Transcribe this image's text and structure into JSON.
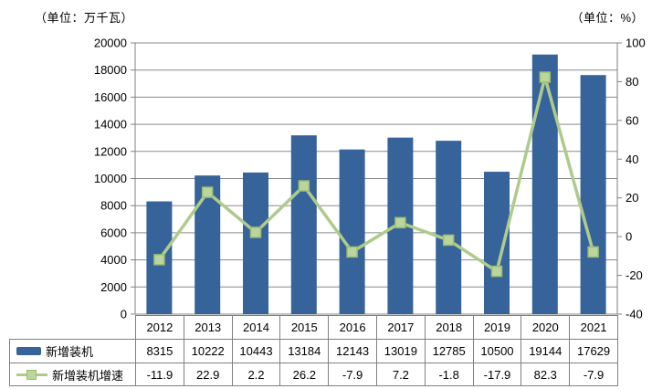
{
  "chart": {
    "unit_left": "（单位：万千瓦）",
    "unit_right": "（单位：%）"
  },
  "chart_data": {
    "type": "bar",
    "subtype": "combo-bar-line-dual-axis",
    "categories": [
      "2012",
      "2013",
      "2014",
      "2015",
      "2016",
      "2017",
      "2018",
      "2019",
      "2020",
      "2021"
    ],
    "series": [
      {
        "name": "新增装机",
        "type": "bar",
        "axis": "left",
        "values": [
          8315,
          10222,
          10443,
          13184,
          12143,
          13019,
          12785,
          10500,
          19144,
          17629
        ]
      },
      {
        "name": "新增装机增速",
        "type": "line",
        "axis": "right",
        "values": [
          -11.9,
          22.9,
          2.2,
          26.2,
          -7.9,
          7.2,
          -1.8,
          -17.9,
          82.3,
          -7.9
        ]
      }
    ],
    "left_axis": {
      "label": "（单位：万千瓦）",
      "min": 0,
      "max": 20000,
      "step": 2000,
      "tick_labels": [
        "0",
        "2000",
        "4000",
        "6000",
        "8000",
        "10000",
        "12000",
        "14000",
        "16000",
        "18000",
        "20000"
      ]
    },
    "right_axis": {
      "label": "（单位：%）",
      "min": -40,
      "max": 100,
      "step": 20,
      "tick_labels": [
        "-40",
        "-20",
        "0",
        "20",
        "40",
        "60",
        "80",
        "100"
      ]
    },
    "grid": true,
    "title": "",
    "legend_position": "data-table-left",
    "data_table_shown": true
  },
  "colors": {
    "bar": "#36639A",
    "line": "#AFCB8C",
    "marker_fill": "#BCD49E",
    "marker_stroke": "#9CBE6E",
    "grid": "#8A8A8A",
    "axis": "#808080",
    "table_border": "#808080",
    "text": "#000000",
    "background": "#FFFFFF"
  }
}
